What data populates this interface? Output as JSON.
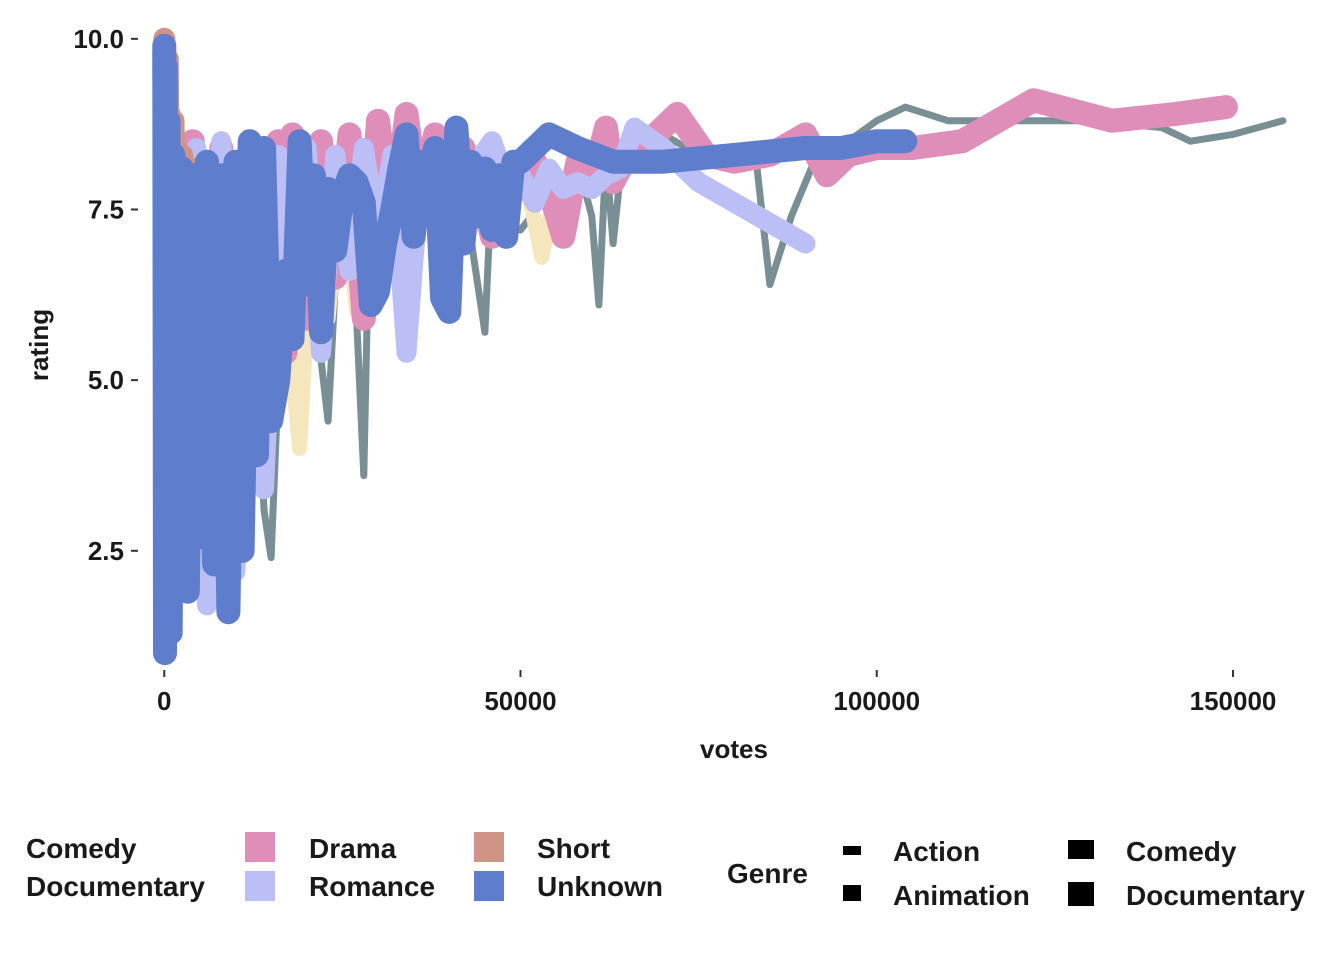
{
  "chart_data": {
    "type": "line",
    "xlabel": "votes",
    "ylabel": "rating",
    "xlim": [
      -2000,
      158000
    ],
    "ylim": [
      0.9,
      10.1
    ],
    "x_ticks": [
      0,
      50000,
      100000,
      150000
    ],
    "x_tick_labels": [
      "0",
      "50000",
      "100000",
      "150000"
    ],
    "y_ticks": [
      2.5,
      5.0,
      7.5,
      10.0
    ],
    "y_tick_labels": [
      "2.5",
      "5.0",
      "7.5",
      "10.0"
    ],
    "grid": false,
    "legend_position": "bottom",
    "series": [
      {
        "name": "Comedy",
        "color": "#7a8f94",
        "x": [
          0,
          300,
          600,
          900,
          1500,
          2500,
          4000,
          6000,
          8000,
          10000,
          12000,
          14000,
          15000,
          17000,
          19000,
          21000,
          22000,
          23000,
          25000,
          27000,
          28000,
          29000,
          31000,
          33000,
          35000,
          37000,
          39000,
          41000,
          43000,
          45000,
          46000,
          48000,
          50000,
          53000,
          56000,
          58000,
          60000,
          61000,
          62000,
          63000,
          64000,
          66000,
          70000,
          75000,
          80000,
          83000,
          85000,
          88000,
          92000,
          96000,
          100000,
          104000,
          110000,
          120000,
          130000,
          140000,
          144000,
          150000,
          157000
        ],
        "y": [
          9.9,
          1.2,
          8.9,
          2.0,
          7.8,
          3.2,
          8.3,
          2.6,
          8.0,
          3.5,
          7.7,
          3.1,
          2.4,
          7.5,
          5.5,
          8.1,
          5.3,
          4.4,
          8.4,
          5.9,
          3.6,
          8.5,
          7.6,
          8.6,
          6.2,
          8.2,
          6.8,
          8.4,
          7.1,
          5.7,
          8.0,
          7.3,
          7.2,
          7.6,
          7.4,
          8.2,
          7.4,
          6.1,
          8.3,
          7.0,
          8.0,
          8.4,
          8.6,
          8.3,
          8.1,
          8.3,
          6.4,
          7.4,
          8.4,
          8.5,
          8.8,
          9.0,
          8.8,
          8.8,
          8.8,
          8.7,
          8.5,
          8.6,
          8.8
        ]
      },
      {
        "name": "Documentary",
        "color": "#f5e6bd",
        "x": [
          0,
          500,
          1000,
          2000,
          3500,
          5000,
          7000,
          9000,
          11000,
          13000,
          15000,
          17000,
          19000,
          21000,
          23000,
          25000,
          27000,
          29000,
          31000,
          33000,
          35000,
          37000,
          39000,
          41000,
          43000,
          45000,
          47000,
          49000,
          51000,
          53000,
          55000,
          57000,
          59000,
          61000,
          63000,
          65000
        ],
        "y": [
          9.6,
          1.6,
          8.7,
          3.2,
          8.1,
          4.2,
          7.9,
          3.9,
          8.2,
          5.0,
          8.0,
          6.2,
          4.0,
          7.8,
          5.9,
          8.1,
          6.0,
          8.3,
          7.0,
          8.2,
          6.5,
          8.1,
          6.9,
          8.3,
          7.2,
          7.9,
          7.6,
          7.9,
          7.8,
          6.8,
          7.9,
          8.0,
          7.8,
          8.1,
          8.2,
          8.1
        ]
      },
      {
        "name": "Drama",
        "color": "#df8db9",
        "x": [
          0,
          300,
          600,
          1000,
          2000,
          3000,
          4000,
          6000,
          8000,
          10000,
          12000,
          14000,
          16000,
          17000,
          18000,
          20000,
          22000,
          24000,
          26000,
          28000,
          30000,
          32000,
          34000,
          36000,
          38000,
          40000,
          42000,
          44000,
          46000,
          48000,
          50000,
          52000,
          54000,
          56000,
          58000,
          60000,
          62000,
          63000,
          65000,
          68000,
          72000,
          76000,
          80000,
          85000,
          90000,
          93000,
          96000,
          100000,
          105000,
          112000,
          122000,
          133000,
          142000,
          149000
        ],
        "y": [
          9.8,
          1.3,
          8.9,
          2.1,
          8.4,
          2.9,
          8.5,
          3.1,
          8.4,
          4.0,
          8.5,
          4.6,
          8.5,
          5.4,
          8.6,
          5.9,
          8.5,
          6.5,
          8.6,
          5.9,
          8.8,
          7.2,
          8.9,
          7.4,
          8.6,
          7.8,
          8.4,
          7.9,
          7.1,
          8.0,
          7.8,
          8.2,
          7.8,
          7.1,
          8.2,
          7.9,
          8.7,
          7.9,
          8.3,
          8.5,
          8.9,
          8.3,
          8.2,
          8.3,
          8.6,
          8.0,
          8.3,
          8.4,
          8.4,
          8.5,
          9.1,
          8.8,
          8.9,
          9.0
        ]
      },
      {
        "name": "Romance",
        "color": "#bbbff6",
        "x": [
          0,
          300,
          600,
          1000,
          2000,
          3000,
          4500,
          6000,
          8000,
          10000,
          12000,
          14000,
          16000,
          18000,
          20000,
          22000,
          24000,
          26000,
          28000,
          30000,
          32000,
          34000,
          36000,
          38000,
          40000,
          42000,
          44000,
          46000,
          48000,
          50000,
          52000,
          54000,
          56000,
          58000,
          60000,
          62000,
          64000,
          66000,
          70000,
          75000,
          80000,
          85000,
          90000
        ],
        "y": [
          9.7,
          1.2,
          8.6,
          1.8,
          8.3,
          2.5,
          8.4,
          1.7,
          8.5,
          2.2,
          8.4,
          3.4,
          8.3,
          5.8,
          8.4,
          5.4,
          8.3,
          6.6,
          8.4,
          7.1,
          8.3,
          5.4,
          8.2,
          7.3,
          8.1,
          7.5,
          8.2,
          8.5,
          7.9,
          8.0,
          7.6,
          8.1,
          7.8,
          7.9,
          7.8,
          8.0,
          8.1,
          8.7,
          8.4,
          7.9,
          7.6,
          7.3,
          7.0
        ]
      },
      {
        "name": "Short",
        "color": "#d09487",
        "x": [
          0,
          200,
          500,
          900,
          1300,
          1800,
          2500,
          3200,
          4000
        ],
        "y": [
          10.0,
          1.1,
          9.7,
          2.4,
          8.8,
          3.1,
          8.3,
          4.0,
          8.1
        ]
      },
      {
        "name": "Unknown",
        "color": "#5e7dcc",
        "x": [
          0,
          100,
          200,
          400,
          600,
          900,
          1300,
          1800,
          2500,
          3300,
          4200,
          5000,
          6000,
          7000,
          8000,
          9000,
          10000,
          11000,
          12000,
          13000,
          14000,
          15000,
          16000,
          17000,
          18000,
          19000,
          20000,
          21000,
          22000,
          23000,
          24000,
          25000,
          26000,
          27000,
          28000,
          29000,
          30000,
          31000,
          32000,
          33000,
          34000,
          35000,
          36000,
          37000,
          38000,
          39000,
          40000,
          41000,
          42000,
          43000,
          44000,
          45000,
          46000,
          47000,
          48000,
          49000,
          50000,
          52000,
          54000,
          58000,
          63000,
          70000,
          80000,
          90000,
          95000,
          100000,
          104000
        ],
        "y": [
          9.9,
          1.0,
          9.6,
          1.5,
          8.8,
          1.3,
          8.3,
          2.1,
          8.1,
          1.9,
          8.0,
          2.7,
          8.2,
          2.3,
          8.0,
          1.6,
          8.2,
          2.5,
          8.5,
          3.9,
          8.4,
          4.4,
          5.0,
          6.6,
          5.6,
          8.5,
          6.4,
          8.0,
          5.7,
          7.8,
          6.9,
          7.7,
          8.0,
          7.9,
          7.6,
          6.1,
          6.3,
          7.0,
          7.5,
          8.1,
          8.6,
          7.1,
          8.2,
          7.6,
          8.4,
          6.2,
          6.0,
          8.7,
          7.0,
          8.2,
          7.4,
          8.1,
          7.2,
          8.0,
          7.1,
          8.2,
          8.2,
          8.4,
          8.6,
          8.4,
          8.2,
          8.2,
          8.3,
          8.4,
          8.4,
          8.5,
          8.5
        ]
      }
    ],
    "legend_color": {
      "items": [
        {
          "label": "Comedy",
          "color": "#7a8f94",
          "swatch": false
        },
        {
          "label": "Documentary",
          "color": "#f5e6bd",
          "swatch": false
        },
        {
          "label": "Drama",
          "color": "#df8db9",
          "swatch": true
        },
        {
          "label": "Romance",
          "color": "#bbbff6",
          "swatch": true
        },
        {
          "label": "Short",
          "color": "#d09487",
          "swatch": true
        },
        {
          "label": "Unknown",
          "color": "#5e7dcc",
          "swatch": true
        }
      ]
    },
    "legend_size": {
      "title": "Genre",
      "items": [
        {
          "label": "Action",
          "level": 1
        },
        {
          "label": "Animation",
          "level": 2
        },
        {
          "label": "Comedy",
          "level": 3
        },
        {
          "label": "Documentary",
          "level": 4
        }
      ]
    }
  }
}
